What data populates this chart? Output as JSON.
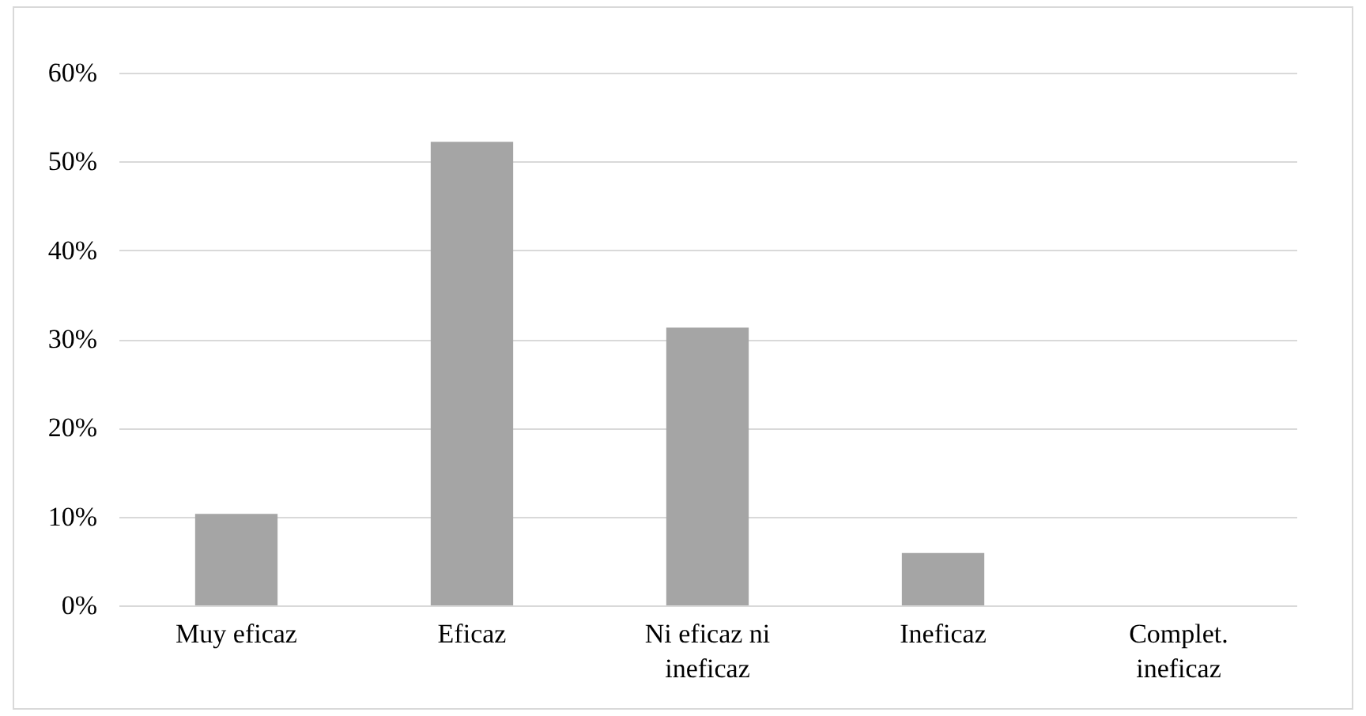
{
  "chart_data": {
    "type": "bar",
    "categories": [
      "Muy eficaz",
      "Eficaz",
      "Ni eficaz ni ineficaz",
      "Ineficaz",
      "Complet. ineficaz"
    ],
    "values": [
      10.3,
      52.2,
      31.3,
      5.9,
      0
    ],
    "color": "#a5a5a5",
    "ylim": [
      0,
      60
    ],
    "yticks": [
      {
        "value": 0,
        "label": "0%"
      },
      {
        "value": 10,
        "label": "10%"
      },
      {
        "value": 20,
        "label": "20%"
      },
      {
        "value": 30,
        "label": "30%"
      },
      {
        "value": 40,
        "label": "40%"
      },
      {
        "value": 50,
        "label": "50%"
      },
      {
        "value": 60,
        "label": "60%"
      }
    ],
    "grid": "y"
  }
}
